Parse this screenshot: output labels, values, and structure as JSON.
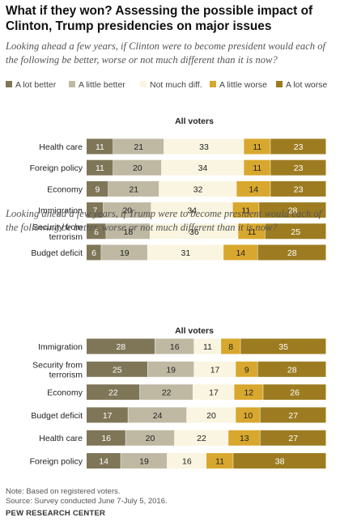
{
  "title": "What if they won? Assessing the possible impact of Clinton, Trump presidencies on major issues",
  "legend": [
    {
      "label": "A lot better",
      "color": "#7f7658"
    },
    {
      "label": "A little better",
      "color": "#bfb9a4"
    },
    {
      "label": "Not much diff.",
      "color": "#faf5e0"
    },
    {
      "label": "A little worse",
      "color": "#d8a72d"
    },
    {
      "label": "A lot worse",
      "color": "#9d7c21"
    }
  ],
  "chart_data": [
    {
      "type": "bar",
      "orientation": "horizontal",
      "stacked": true,
      "subtitle": "Looking ahead a few years, if Clinton were to become president would each of the following be better, worse or not much different than it is now?",
      "group_label": "All voters",
      "categories": [
        "Health care",
        "Foreign policy",
        "Economy",
        "Immigration",
        "Security from terrorism",
        "Budget deficit"
      ],
      "series": [
        {
          "name": "A lot better",
          "values": [
            11,
            11,
            9,
            7,
            8,
            6
          ]
        },
        {
          "name": "A little better",
          "values": [
            21,
            20,
            21,
            20,
            18,
            19
          ]
        },
        {
          "name": "Not much diff.",
          "values": [
            33,
            34,
            32,
            34,
            36,
            31
          ]
        },
        {
          "name": "A little worse",
          "values": [
            11,
            11,
            14,
            11,
            11,
            14
          ]
        },
        {
          "name": "A lot worse",
          "values": [
            23,
            23,
            23,
            28,
            25,
            28
          ]
        }
      ],
      "legend_position": "top",
      "grid": false
    },
    {
      "type": "bar",
      "orientation": "horizontal",
      "stacked": true,
      "subtitle": "Looking ahead a few years, if Trump were to become president would each of the following be better, worse or not much different than it is now?",
      "group_label": "All voters",
      "categories": [
        "Immigration",
        "Security from terrorism",
        "Economy",
        "Budget deficit",
        "Health care",
        "Foreign policy"
      ],
      "series": [
        {
          "name": "A lot better",
          "values": [
            28,
            25,
            22,
            17,
            16,
            14
          ]
        },
        {
          "name": "A little better",
          "values": [
            16,
            19,
            22,
            24,
            20,
            19
          ]
        },
        {
          "name": "Not much diff.",
          "values": [
            11,
            17,
            17,
            20,
            22,
            16
          ]
        },
        {
          "name": "A little worse",
          "values": [
            8,
            9,
            12,
            10,
            13,
            11
          ]
        },
        {
          "name": "A lot worse",
          "values": [
            35,
            28,
            26,
            27,
            27,
            38
          ]
        }
      ],
      "legend_position": "top",
      "grid": false
    }
  ],
  "notes": {
    "note": "Note: Based on registered voters.",
    "source": "Source:  Survey conducted June 7-July 5, 2016.",
    "org": "PEW RESEARCH CENTER"
  }
}
